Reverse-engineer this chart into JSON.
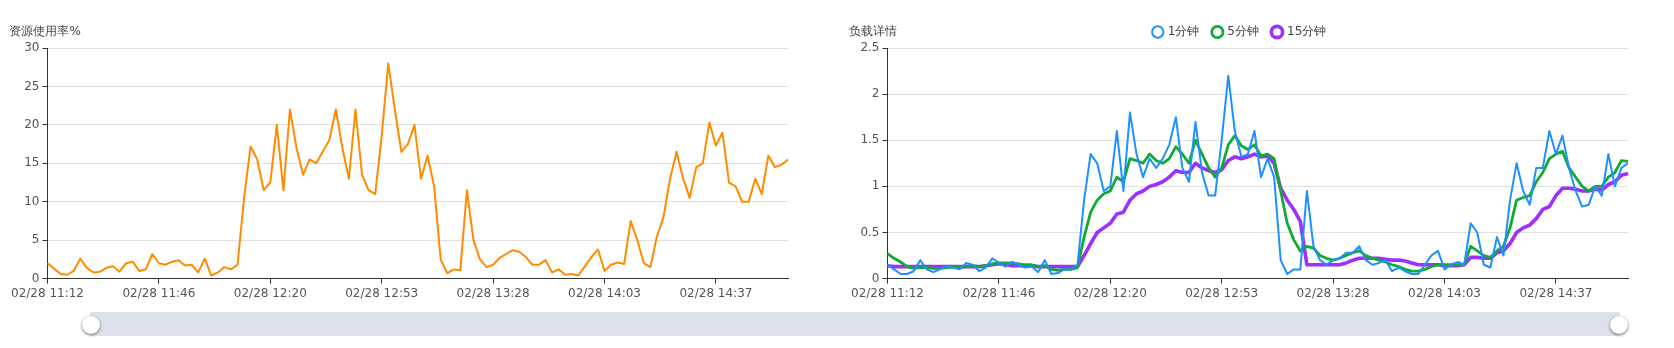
{
  "chart_data": [
    {
      "type": "line",
      "ylabel": "资源使用率%",
      "categories": [
        "02/28 11:12",
        null,
        null,
        null,
        null,
        null,
        null,
        null,
        null,
        null,
        null,
        null,
        null,
        null,
        null,
        null,
        null,
        "02/28 11:46",
        null,
        null,
        null,
        null,
        null,
        null,
        null,
        null,
        null,
        null,
        null,
        null,
        null,
        null,
        null,
        null,
        "02/28 12:20",
        null,
        null,
        null,
        null,
        null,
        null,
        null,
        null,
        null,
        null,
        null,
        null,
        null,
        null,
        null,
        null,
        "02/28 12:53",
        null,
        null,
        null,
        null,
        null,
        null,
        null,
        null,
        null,
        null,
        null,
        null,
        null,
        null,
        null,
        null,
        "02/28 13:28",
        null,
        null,
        null,
        null,
        null,
        null,
        null,
        null,
        null,
        null,
        null,
        null,
        null,
        null,
        null,
        null,
        "02/28 14:03",
        null,
        null,
        null,
        null,
        null,
        null,
        null,
        null,
        null,
        null,
        null,
        null,
        null,
        null,
        null,
        null,
        "02/28 14:37",
        null,
        null,
        null,
        null,
        null,
        null,
        null,
        null,
        null,
        null,
        null
      ],
      "series": [
        {
          "color": "#ff8c00",
          "values": [
            2.0,
            1.3,
            0.6,
            0.5,
            1.0,
            2.6,
            1.4,
            0.8,
            0.9,
            1.4,
            1.6,
            0.9,
            2.0,
            2.2,
            1.0,
            1.2,
            3.2,
            2.0,
            1.8,
            2.2,
            2.4,
            1.7,
            1.8,
            0.8,
            2.6,
            0.4,
            0.8,
            1.5,
            1.2,
            1.8,
            10.5,
            17.2,
            15.5,
            11.5,
            12.5,
            20,
            11.5,
            22,
            17,
            13.5,
            15.5,
            15,
            16.5,
            18,
            22,
            17,
            13,
            22,
            13.5,
            11.5,
            11,
            18.5,
            28,
            22,
            16.5,
            17.5,
            20,
            13,
            16,
            12,
            2.5,
            0.7,
            1.2,
            1.1,
            11.5,
            5,
            2.5,
            1.5,
            1.8,
            2.7,
            3.2,
            3.7,
            3.5,
            2.8,
            1.8,
            1.8,
            2.4,
            0.8,
            1.2,
            0.5,
            0.6,
            0.4,
            1.6,
            2.8,
            3.8,
            1.0,
            1.8,
            2.1,
            1.9,
            7.5,
            5,
            2.0,
            1.5,
            5.5,
            8,
            13,
            16.5,
            13,
            10.5,
            14.5,
            15,
            20.3,
            17.3,
            19,
            12.5,
            12,
            10,
            10,
            13,
            11,
            16,
            14.5,
            14.8,
            15.5
          ]
        }
      ],
      "ylim": [
        0,
        30
      ],
      "yticks": [
        0,
        5,
        10,
        15,
        20,
        25,
        30
      ],
      "grid": "y"
    },
    {
      "type": "line",
      "ylabel": "负载详情",
      "categories": [
        "02/28 11:12",
        null,
        null,
        null,
        null,
        null,
        null,
        null,
        null,
        null,
        null,
        null,
        null,
        null,
        null,
        null,
        null,
        "02/28 11:46",
        null,
        null,
        null,
        null,
        null,
        null,
        null,
        null,
        null,
        null,
        null,
        null,
        null,
        null,
        null,
        null,
        "02/28 12:20",
        null,
        null,
        null,
        null,
        null,
        null,
        null,
        null,
        null,
        null,
        null,
        null,
        null,
        null,
        null,
        null,
        "02/28 12:53",
        null,
        null,
        null,
        null,
        null,
        null,
        null,
        null,
        null,
        null,
        null,
        null,
        null,
        null,
        null,
        null,
        "02/28 13:28",
        null,
        null,
        null,
        null,
        null,
        null,
        null,
        null,
        null,
        null,
        null,
        null,
        null,
        null,
        null,
        null,
        "02/28 14:03",
        null,
        null,
        null,
        null,
        null,
        null,
        null,
        null,
        null,
        null,
        null,
        null,
        null,
        null,
        null,
        null,
        "02/28 14:37",
        null,
        null,
        null,
        null,
        null,
        null,
        null,
        null,
        null,
        null,
        null
      ],
      "series": [
        {
          "name": "1分钟",
          "color": "#1e90ff",
          "values": [
            0.15,
            0.1,
            0.05,
            0.05,
            0.08,
            0.2,
            0.1,
            0.07,
            0.1,
            0.13,
            0.12,
            0.1,
            0.17,
            0.15,
            0.08,
            0.12,
            0.22,
            0.17,
            0.13,
            0.18,
            0.15,
            0.12,
            0.13,
            0.07,
            0.2,
            0.05,
            0.06,
            0.1,
            0.1,
            0.15,
            0.85,
            1.35,
            1.25,
            0.95,
            1.0,
            1.6,
            0.95,
            1.8,
            1.35,
            1.1,
            1.3,
            1.2,
            1.3,
            1.45,
            1.75,
            1.2,
            1.05,
            1.7,
            1.15,
            0.9,
            0.9,
            1.5,
            2.2,
            1.6,
            1.32,
            1.35,
            1.6,
            1.1,
            1.3,
            1.1,
            0.2,
            0.05,
            0.1,
            0.1,
            0.95,
            0.35,
            0.2,
            0.15,
            0.2,
            0.22,
            0.28,
            0.28,
            0.35,
            0.2,
            0.15,
            0.17,
            0.2,
            0.08,
            0.12,
            0.08,
            0.05,
            0.05,
            0.15,
            0.25,
            0.3,
            0.1,
            0.15,
            0.18,
            0.15,
            0.6,
            0.5,
            0.15,
            0.12,
            0.45,
            0.25,
            0.85,
            1.25,
            0.95,
            0.8,
            1.2,
            1.2,
            1.6,
            1.35,
            1.55,
            1.2,
            0.95,
            0.78,
            0.8,
            1.0,
            0.9,
            1.35,
            1.0,
            1.2,
            1.25
          ]
        },
        {
          "name": "5分钟",
          "color": "#11aa33",
          "values": [
            0.27,
            0.22,
            0.18,
            0.13,
            0.11,
            0.12,
            0.12,
            0.11,
            0.11,
            0.12,
            0.13,
            0.12,
            0.13,
            0.14,
            0.13,
            0.14,
            0.16,
            0.17,
            0.17,
            0.17,
            0.16,
            0.15,
            0.15,
            0.13,
            0.14,
            0.1,
            0.09,
            0.1,
            0.1,
            0.12,
            0.45,
            0.72,
            0.85,
            0.92,
            0.95,
            1.1,
            1.05,
            1.3,
            1.28,
            1.25,
            1.35,
            1.28,
            1.25,
            1.3,
            1.43,
            1.35,
            1.25,
            1.5,
            1.35,
            1.2,
            1.1,
            1.2,
            1.45,
            1.55,
            1.44,
            1.4,
            1.45,
            1.33,
            1.35,
            1.3,
            0.95,
            0.6,
            0.42,
            0.3,
            0.35,
            0.33,
            0.25,
            0.22,
            0.2,
            0.22,
            0.25,
            0.28,
            0.3,
            0.25,
            0.22,
            0.2,
            0.18,
            0.15,
            0.13,
            0.1,
            0.08,
            0.08,
            0.1,
            0.13,
            0.15,
            0.15,
            0.15,
            0.15,
            0.15,
            0.35,
            0.3,
            0.25,
            0.23,
            0.3,
            0.35,
            0.55,
            0.85,
            0.88,
            0.9,
            1.05,
            1.15,
            1.3,
            1.35,
            1.38,
            1.2,
            1.1,
            1.0,
            0.95,
            1.0,
            1.0,
            1.1,
            1.15,
            1.28,
            1.27
          ]
        },
        {
          "name": "15分钟",
          "color": "#9b30ff",
          "values": [
            0.14,
            0.13,
            0.13,
            0.13,
            0.13,
            0.13,
            0.13,
            0.13,
            0.13,
            0.13,
            0.13,
            0.13,
            0.13,
            0.13,
            0.13,
            0.14,
            0.15,
            0.16,
            0.15,
            0.14,
            0.14,
            0.14,
            0.14,
            0.13,
            0.13,
            0.13,
            0.13,
            0.13,
            0.13,
            0.13,
            0.25,
            0.38,
            0.5,
            0.55,
            0.6,
            0.7,
            0.72,
            0.85,
            0.92,
            0.95,
            1.0,
            1.02,
            1.05,
            1.1,
            1.17,
            1.15,
            1.15,
            1.25,
            1.2,
            1.17,
            1.15,
            1.18,
            1.28,
            1.32,
            1.3,
            1.32,
            1.35,
            1.32,
            1.33,
            1.25,
            0.98,
            0.85,
            0.75,
            0.62,
            0.15,
            0.15,
            0.15,
            0.15,
            0.15,
            0.15,
            0.17,
            0.2,
            0.22,
            0.22,
            0.22,
            0.22,
            0.21,
            0.2,
            0.2,
            0.19,
            0.17,
            0.15,
            0.15,
            0.15,
            0.15,
            0.14,
            0.14,
            0.14,
            0.15,
            0.23,
            0.23,
            0.22,
            0.22,
            0.28,
            0.3,
            0.38,
            0.5,
            0.55,
            0.58,
            0.65,
            0.75,
            0.78,
            0.9,
            0.98,
            0.98,
            0.97,
            0.95,
            0.95,
            0.97,
            0.96,
            1.02,
            1.05,
            1.12,
            1.14
          ]
        }
      ],
      "ylim": [
        0,
        2.5
      ],
      "yticks": [
        0,
        0.5,
        1,
        1.5,
        2,
        2.5
      ],
      "grid": "y",
      "legend": "top"
    }
  ]
}
